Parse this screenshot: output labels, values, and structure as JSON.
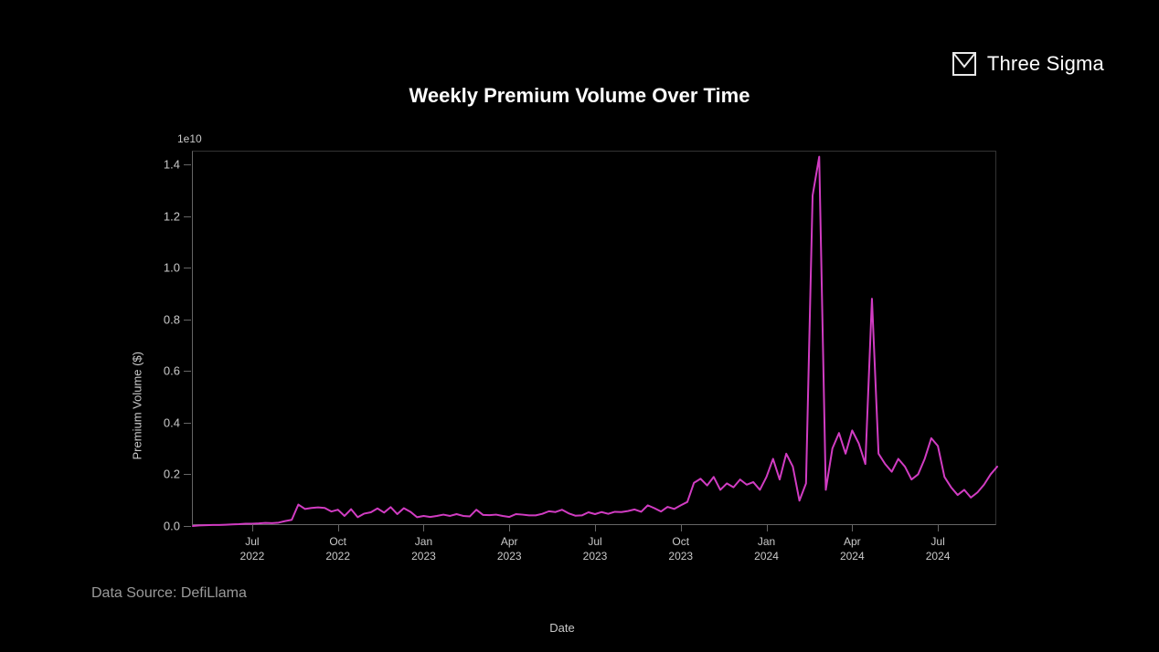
{
  "brand": {
    "name": "Three Sigma",
    "logo_stroke": "#e8e8e8"
  },
  "chart": {
    "type": "line",
    "title": "Weekly Premium Volume Over Time",
    "title_fontsize": 22,
    "title_color": "#ffffff",
    "background_color": "#000000",
    "plot_border_color": "#666666",
    "plot_border_light": "#333333",
    "ylabel": "Premium Volume ($)",
    "xlabel": "Date",
    "label_fontsize": 13,
    "label_color": "#c9c9c9",
    "tick_fontsize": 13,
    "tick_color": "#c9c9c9",
    "exponent_note": "1e10",
    "line_color": "#d13cc2",
    "line_width": 2,
    "y": {
      "min": 0.0,
      "max": 1.45,
      "ticks": [
        0.0,
        0.2,
        0.4,
        0.6,
        0.8,
        1.0,
        1.2,
        1.4
      ],
      "tick_labels": [
        "0.0",
        "0.2",
        "0.4",
        "0.6",
        "0.8",
        "1.0",
        "1.2",
        "1.4"
      ]
    },
    "x": {
      "min": 0,
      "max": 122,
      "ticks": [
        9,
        22,
        35,
        48,
        61,
        74,
        87,
        100,
        113
      ],
      "tick_labels": [
        "Jul\n2022",
        "Oct\n2022",
        "Jan\n2023",
        "Apr\n2023",
        "Jul\n2023",
        "Oct\n2023",
        "Jan\n2024",
        "Apr\n2024",
        "Jul\n2024"
      ]
    },
    "series": [
      0.0,
      0.002,
      0.003,
      0.004,
      0.004,
      0.005,
      0.006,
      0.007,
      0.009,
      0.009,
      0.01,
      0.012,
      0.011,
      0.013,
      0.019,
      0.024,
      0.083,
      0.066,
      0.07,
      0.072,
      0.07,
      0.056,
      0.063,
      0.039,
      0.065,
      0.034,
      0.048,
      0.053,
      0.068,
      0.052,
      0.073,
      0.046,
      0.069,
      0.055,
      0.034,
      0.039,
      0.035,
      0.039,
      0.044,
      0.039,
      0.046,
      0.039,
      0.037,
      0.063,
      0.043,
      0.042,
      0.044,
      0.039,
      0.035,
      0.046,
      0.044,
      0.041,
      0.041,
      0.047,
      0.057,
      0.054,
      0.063,
      0.049,
      0.04,
      0.041,
      0.053,
      0.046,
      0.054,
      0.047,
      0.055,
      0.054,
      0.058,
      0.064,
      0.055,
      0.08,
      0.069,
      0.056,
      0.074,
      0.066,
      0.08,
      0.093,
      0.167,
      0.183,
      0.157,
      0.19,
      0.14,
      0.165,
      0.15,
      0.18,
      0.16,
      0.17,
      0.14,
      0.19,
      0.26,
      0.18,
      0.28,
      0.23,
      0.098,
      0.165,
      1.28,
      1.43,
      0.14,
      0.3,
      0.36,
      0.28,
      0.37,
      0.32,
      0.24,
      0.88,
      0.28,
      0.24,
      0.21,
      0.26,
      0.23,
      0.18,
      0.2,
      0.26,
      0.34,
      0.31,
      0.19,
      0.15,
      0.12,
      0.14,
      0.11,
      0.13,
      0.16,
      0.2,
      0.23
    ]
  },
  "source_label": "Data Source: DefiLlama",
  "source_color": "#9a9a9a",
  "source_fontsize": 16
}
